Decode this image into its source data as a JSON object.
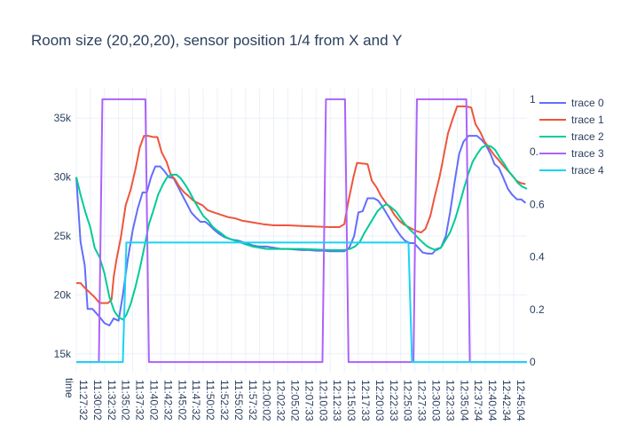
{
  "chart_data": {
    "type": "line",
    "title": "Room size (20,20,20), sensor position 1/4 from X and Y",
    "xlabel": "time",
    "x_ticks": [
      "11:27:32",
      "11:30:02",
      "11:32:32",
      "11:35:02",
      "11:37:32",
      "11:40:02",
      "11:42:32",
      "11:45:02",
      "11:47:32",
      "11:50:02",
      "11:52:32",
      "11:55:02",
      "11:57:32",
      "12:00:02",
      "12:02:32",
      "12:05:02",
      "12:07:33",
      "12:10:03",
      "12:12:33",
      "12:15:03",
      "12:17:33",
      "12:20:03",
      "12:22:33",
      "12:25:03",
      "12:27:33",
      "12:30:03",
      "12:32:33",
      "12:35:04",
      "12:37:34",
      "12:40:04",
      "12:42:34",
      "12:45:04"
    ],
    "y_left": {
      "range": [
        13400,
        37500
      ],
      "ticks": [
        15000,
        20000,
        25000,
        30000,
        35000
      ],
      "tick_labels": [
        "15k",
        "20k",
        "25k",
        "30k",
        "35k"
      ]
    },
    "y_right": {
      "range": [
        -0.04,
        1.04
      ],
      "ticks": [
        0,
        0.2,
        0.4,
        0.6,
        0.8,
        1
      ],
      "tick_labels": [
        "0",
        "0.2",
        "0.4",
        "0.6",
        "0.",
        "1"
      ]
    },
    "grid": true,
    "legend_position": "top-right",
    "series": [
      {
        "name": "trace 0",
        "color": "#636efa",
        "axis": "left",
        "points": [
          [
            0,
            30000
          ],
          [
            0.6,
            24500
          ],
          [
            1.2,
            22500
          ],
          [
            1.6,
            18800
          ],
          [
            2.3,
            18800
          ],
          [
            3.2,
            18200
          ],
          [
            4,
            17600
          ],
          [
            4.7,
            17400
          ],
          [
            5.3,
            18000
          ],
          [
            6,
            17800
          ],
          [
            6.6,
            20000
          ],
          [
            7.3,
            23000
          ],
          [
            8,
            25500
          ],
          [
            8.7,
            27300
          ],
          [
            9.4,
            28700
          ],
          [
            10,
            28700
          ],
          [
            10.6,
            30000
          ],
          [
            11.2,
            30900
          ],
          [
            11.9,
            30900
          ],
          [
            12.5,
            30500
          ],
          [
            13.1,
            30000
          ],
          [
            13.8,
            29900
          ],
          [
            14.4,
            29200
          ],
          [
            15,
            28500
          ],
          [
            15.7,
            27700
          ],
          [
            16.3,
            27000
          ],
          [
            16.9,
            26600
          ],
          [
            17.6,
            26200
          ],
          [
            18.3,
            26200
          ],
          [
            18.9,
            25900
          ],
          [
            19.6,
            25500
          ],
          [
            20.2,
            25200
          ],
          [
            21,
            24900
          ],
          [
            22,
            24700
          ],
          [
            23,
            24600
          ],
          [
            24,
            24400
          ],
          [
            25,
            24200
          ],
          [
            26,
            24100
          ],
          [
            27,
            24100
          ],
          [
            28,
            24000
          ],
          [
            29,
            23900
          ],
          [
            30,
            23900
          ],
          [
            31,
            23850
          ],
          [
            32,
            23800
          ],
          [
            33,
            23800
          ],
          [
            34,
            23750
          ],
          [
            35,
            23750
          ],
          [
            36,
            23700
          ],
          [
            37,
            23700
          ],
          [
            38,
            23700
          ],
          [
            38.7,
            24000
          ],
          [
            39.4,
            25000
          ],
          [
            40,
            27000
          ],
          [
            40.6,
            27100
          ],
          [
            41.3,
            28200
          ],
          [
            42.2,
            28200
          ],
          [
            42.8,
            28000
          ],
          [
            43.4,
            27500
          ],
          [
            44,
            26900
          ],
          [
            44.7,
            26200
          ],
          [
            45.3,
            25600
          ],
          [
            46,
            25000
          ],
          [
            46.6,
            24600
          ],
          [
            47.3,
            24400
          ],
          [
            47.9,
            24400
          ],
          [
            48.5,
            24000
          ],
          [
            49.1,
            23600
          ],
          [
            49.8,
            23500
          ],
          [
            50.5,
            23500
          ],
          [
            51.1,
            23900
          ],
          [
            51.7,
            24000
          ],
          [
            52.4,
            25000
          ],
          [
            53,
            27000
          ],
          [
            53.7,
            29800
          ],
          [
            54.3,
            32000
          ],
          [
            54.9,
            33000
          ],
          [
            55.6,
            33500
          ],
          [
            56.8,
            33500
          ],
          [
            57.4,
            33200
          ],
          [
            58,
            32800
          ],
          [
            58.7,
            32000
          ],
          [
            59.3,
            31100
          ],
          [
            59.9,
            30800
          ],
          [
            60.5,
            30000
          ],
          [
            61.2,
            29000
          ],
          [
            61.8,
            28500
          ],
          [
            62.5,
            28100
          ],
          [
            63.1,
            28100
          ],
          [
            63.7,
            27800
          ]
        ]
      },
      {
        "name": "trace 1",
        "color": "#ef553b",
        "axis": "left",
        "points": [
          [
            0,
            21000
          ],
          [
            0.6,
            21000
          ],
          [
            1.2,
            20600
          ],
          [
            1.9,
            20200
          ],
          [
            2.6,
            19800
          ],
          [
            3.3,
            19300
          ],
          [
            4.5,
            19300
          ],
          [
            5,
            19600
          ],
          [
            5.3,
            21500
          ],
          [
            5.7,
            23000
          ],
          [
            6.3,
            24800
          ],
          [
            7,
            27600
          ],
          [
            7.7,
            28900
          ],
          [
            8.4,
            30700
          ],
          [
            9,
            32500
          ],
          [
            9.6,
            33500
          ],
          [
            10.2,
            33500
          ],
          [
            10.9,
            33400
          ],
          [
            11.5,
            33400
          ],
          [
            12.1,
            32100
          ],
          [
            12.8,
            31300
          ],
          [
            13.4,
            30200
          ],
          [
            14,
            29800
          ],
          [
            14.6,
            29200
          ],
          [
            15.3,
            28700
          ],
          [
            15.9,
            28400
          ],
          [
            16.6,
            28000
          ],
          [
            17.2,
            27800
          ],
          [
            17.9,
            27600
          ],
          [
            18.6,
            27200
          ],
          [
            19.5,
            27000
          ],
          [
            20.5,
            26800
          ],
          [
            21.5,
            26600
          ],
          [
            22.5,
            26500
          ],
          [
            23.5,
            26300
          ],
          [
            24.5,
            26200
          ],
          [
            25.5,
            26100
          ],
          [
            26.5,
            26000
          ],
          [
            28,
            25900
          ],
          [
            30,
            25900
          ],
          [
            32,
            25850
          ],
          [
            34,
            25800
          ],
          [
            36,
            25750
          ],
          [
            37.3,
            25750
          ],
          [
            38,
            26000
          ],
          [
            38.6,
            28000
          ],
          [
            39.3,
            30000
          ],
          [
            39.8,
            31200
          ],
          [
            41.3,
            31100
          ],
          [
            41.9,
            29700
          ],
          [
            42.6,
            29100
          ],
          [
            43.2,
            28400
          ],
          [
            43.9,
            27800
          ],
          [
            44.5,
            27400
          ],
          [
            45.1,
            26800
          ],
          [
            45.8,
            26300
          ],
          [
            46.4,
            26000
          ],
          [
            47,
            25800
          ],
          [
            47.6,
            25600
          ],
          [
            48.3,
            25400
          ],
          [
            48.9,
            25300
          ],
          [
            49.5,
            25600
          ],
          [
            50.2,
            26700
          ],
          [
            50.8,
            28300
          ],
          [
            51.5,
            30000
          ],
          [
            51.9,
            31200
          ],
          [
            52.7,
            33700
          ],
          [
            53.4,
            35000
          ],
          [
            54,
            36000
          ],
          [
            54.6,
            36000
          ],
          [
            55.3,
            36000
          ],
          [
            56,
            35900
          ],
          [
            56.6,
            34500
          ],
          [
            57.3,
            33800
          ],
          [
            57.9,
            33000
          ],
          [
            58.5,
            32500
          ],
          [
            59.2,
            31900
          ],
          [
            59.8,
            31500
          ],
          [
            60.5,
            31000
          ],
          [
            61.1,
            30600
          ],
          [
            61.7,
            30200
          ],
          [
            62.4,
            29700
          ],
          [
            63,
            29500
          ],
          [
            63.7,
            29400
          ]
        ]
      },
      {
        "name": "trace 2",
        "color": "#00cc96",
        "axis": "left",
        "points": [
          [
            0,
            30000
          ],
          [
            0.6,
            28500
          ],
          [
            1.3,
            27000
          ],
          [
            2,
            25700
          ],
          [
            2.6,
            24000
          ],
          [
            3.3,
            23200
          ],
          [
            4,
            21800
          ],
          [
            4.7,
            19800
          ],
          [
            5.4,
            18600
          ],
          [
            6,
            18100
          ],
          [
            6.6,
            17900
          ],
          [
            7.1,
            18300
          ],
          [
            7.7,
            19200
          ],
          [
            8.4,
            20700
          ],
          [
            9,
            22200
          ],
          [
            9.7,
            24200
          ],
          [
            10.3,
            26000
          ],
          [
            11,
            27300
          ],
          [
            11.6,
            28500
          ],
          [
            12.3,
            29400
          ],
          [
            12.9,
            30000
          ],
          [
            13.5,
            30200
          ],
          [
            14.2,
            30200
          ],
          [
            14.8,
            29900
          ],
          [
            15.5,
            29300
          ],
          [
            16.1,
            28700
          ],
          [
            16.8,
            27900
          ],
          [
            17.4,
            27300
          ],
          [
            18,
            26700
          ],
          [
            18.7,
            26300
          ],
          [
            19.3,
            25800
          ],
          [
            19.9,
            25500
          ],
          [
            20.6,
            25200
          ],
          [
            21.2,
            24900
          ],
          [
            22,
            24700
          ],
          [
            23,
            24500
          ],
          [
            24,
            24300
          ],
          [
            25,
            24100
          ],
          [
            26,
            24000
          ],
          [
            27,
            23900
          ],
          [
            28,
            23900
          ],
          [
            30,
            23900
          ],
          [
            32,
            23900
          ],
          [
            34,
            23850
          ],
          [
            36,
            23800
          ],
          [
            38,
            23800
          ],
          [
            38.8,
            23900
          ],
          [
            39.5,
            24100
          ],
          [
            40.2,
            24500
          ],
          [
            40.8,
            25200
          ],
          [
            41.5,
            25900
          ],
          [
            42.1,
            26500
          ],
          [
            42.7,
            27100
          ],
          [
            43.4,
            27500
          ],
          [
            44,
            27700
          ],
          [
            44.7,
            27400
          ],
          [
            45.3,
            27100
          ],
          [
            46,
            26500
          ],
          [
            46.6,
            26000
          ],
          [
            47.2,
            25600
          ],
          [
            47.9,
            25200
          ],
          [
            48.5,
            24800
          ],
          [
            49.2,
            24400
          ],
          [
            49.8,
            24100
          ],
          [
            50.5,
            23900
          ],
          [
            51.1,
            23800
          ],
          [
            51.7,
            24000
          ],
          [
            52.4,
            24700
          ],
          [
            53,
            25300
          ],
          [
            53.7,
            26400
          ],
          [
            54.3,
            27600
          ],
          [
            55,
            29100
          ],
          [
            55.6,
            30300
          ],
          [
            56.2,
            31300
          ],
          [
            56.9,
            32000
          ],
          [
            57.5,
            32500
          ],
          [
            58.1,
            32700
          ],
          [
            58.8,
            32600
          ],
          [
            59.4,
            32300
          ],
          [
            60,
            31700
          ],
          [
            60.7,
            31100
          ],
          [
            61.3,
            30500
          ],
          [
            62,
            30000
          ],
          [
            62.6,
            29500
          ],
          [
            63.2,
            29200
          ],
          [
            63.9,
            29000
          ]
        ]
      },
      {
        "name": "trace 3",
        "color": "#ab63fa",
        "axis": "right",
        "points": [
          [
            0,
            0
          ],
          [
            3.2,
            0
          ],
          [
            3.7,
            1
          ],
          [
            9.8,
            1
          ],
          [
            10.3,
            0
          ],
          [
            34.9,
            0
          ],
          [
            35.4,
            1
          ],
          [
            38.1,
            1
          ],
          [
            38.6,
            0
          ],
          [
            47.8,
            0
          ],
          [
            48.3,
            1
          ],
          [
            55.3,
            1
          ],
          [
            55.8,
            0
          ],
          [
            63.9,
            0
          ]
        ]
      },
      {
        "name": "trace 4",
        "color": "#19d3f3",
        "axis": "right",
        "points": [
          [
            0,
            0
          ],
          [
            6.6,
            0
          ],
          [
            7.1,
            0.455
          ],
          [
            47.1,
            0.455
          ],
          [
            47.6,
            0
          ],
          [
            63.9,
            0
          ]
        ]
      }
    ]
  }
}
